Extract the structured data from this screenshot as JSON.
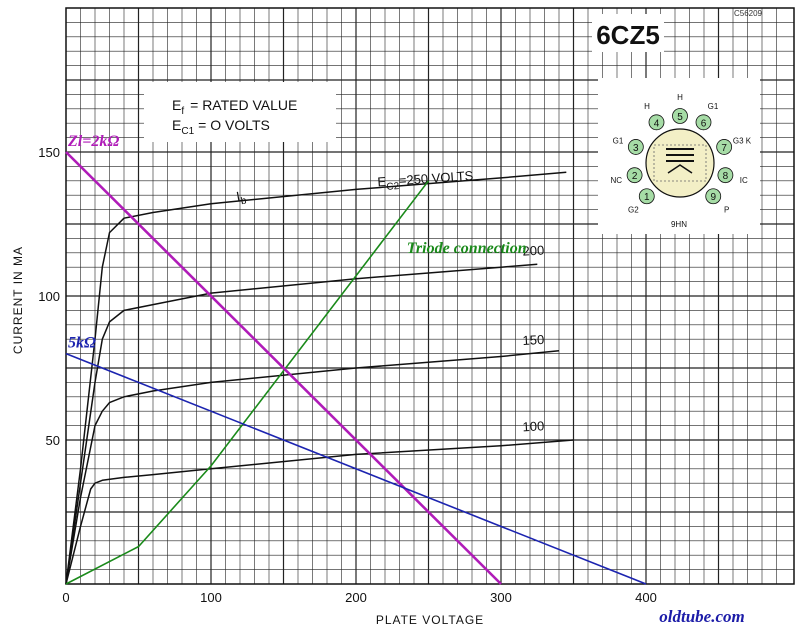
{
  "chart_data": {
    "type": "line",
    "title": "6CZ5",
    "code": "C56209",
    "xlabel": "PLATE VOLTAGE",
    "ylabel": "CURRENT IN MA",
    "xlim": [
      0,
      400
    ],
    "ylim": [
      0,
      150
    ],
    "x_ticks": [
      0,
      100,
      200,
      300,
      400
    ],
    "y_ticks": [
      50,
      100,
      150
    ],
    "grid": true,
    "conditions": {
      "ef": {
        "symbol": "E",
        "sub": "f",
        "text": "= RATED VALUE"
      },
      "ec1": {
        "symbol": "E",
        "sub": "C1",
        "text": "= O  VOLTS"
      }
    },
    "ib_label": {
      "symbol": "I",
      "sub": "b"
    },
    "ec2_label": {
      "symbol": "E",
      "sub": "C2",
      "text": "=250 VOLTS"
    },
    "series": [
      {
        "name": "250",
        "label_text": "250",
        "x": [
          0,
          10,
          20,
          25,
          30,
          40,
          60,
          100,
          200,
          300,
          345
        ],
        "y": [
          0,
          40,
          85,
          110,
          122,
          127,
          129,
          132,
          137,
          141,
          143
        ]
      },
      {
        "name": "200",
        "label_text": "200",
        "x": [
          0,
          10,
          20,
          25,
          30,
          40,
          60,
          100,
          200,
          300,
          325
        ],
        "y": [
          0,
          35,
          70,
          85,
          91,
          95,
          97,
          101,
          106,
          110,
          111
        ]
      },
      {
        "name": "150",
        "label_text": "150",
        "x": [
          0,
          10,
          20,
          25,
          30,
          40,
          60,
          100,
          200,
          300,
          340
        ],
        "y": [
          0,
          30,
          55,
          60,
          63,
          65,
          67,
          70,
          75,
          79,
          81
        ]
      },
      {
        "name": "100",
        "label_text": "100",
        "x": [
          0,
          10,
          17,
          20,
          25,
          40,
          60,
          100,
          200,
          300,
          350
        ],
        "y": [
          0,
          20,
          33,
          35,
          36,
          37,
          38,
          40,
          45,
          48,
          50
        ]
      }
    ],
    "triode": {
      "name": "Triode connection",
      "x": [
        0,
        50,
        100,
        250
      ],
      "y": [
        0,
        13,
        41,
        140
      ]
    },
    "load_lines": [
      {
        "name": "Zl=2kΩ",
        "color": "#b01cb8",
        "x": [
          0,
          300
        ],
        "y": [
          150,
          0
        ]
      },
      {
        "name": "5kΩ",
        "color": "#1c24b0",
        "x": [
          0,
          400
        ],
        "y": [
          80,
          0
        ]
      }
    ],
    "colors": {
      "triode": "#1a8a1a",
      "curves": "#111111",
      "grid": "#222222"
    }
  },
  "basing": {
    "designation": "9HN",
    "pins": [
      {
        "num": "1",
        "label": "G2"
      },
      {
        "num": "2",
        "label": "NC"
      },
      {
        "num": "3",
        "label": "G1"
      },
      {
        "num": "4",
        "label": "H"
      },
      {
        "num": "5",
        "label": "H"
      },
      {
        "num": "6",
        "label": "G1"
      },
      {
        "num": "7",
        "label": "G3 K"
      },
      {
        "num": "8",
        "label": "IC"
      },
      {
        "num": "9",
        "label": "P"
      }
    ]
  },
  "watermark": "oldtube.com"
}
